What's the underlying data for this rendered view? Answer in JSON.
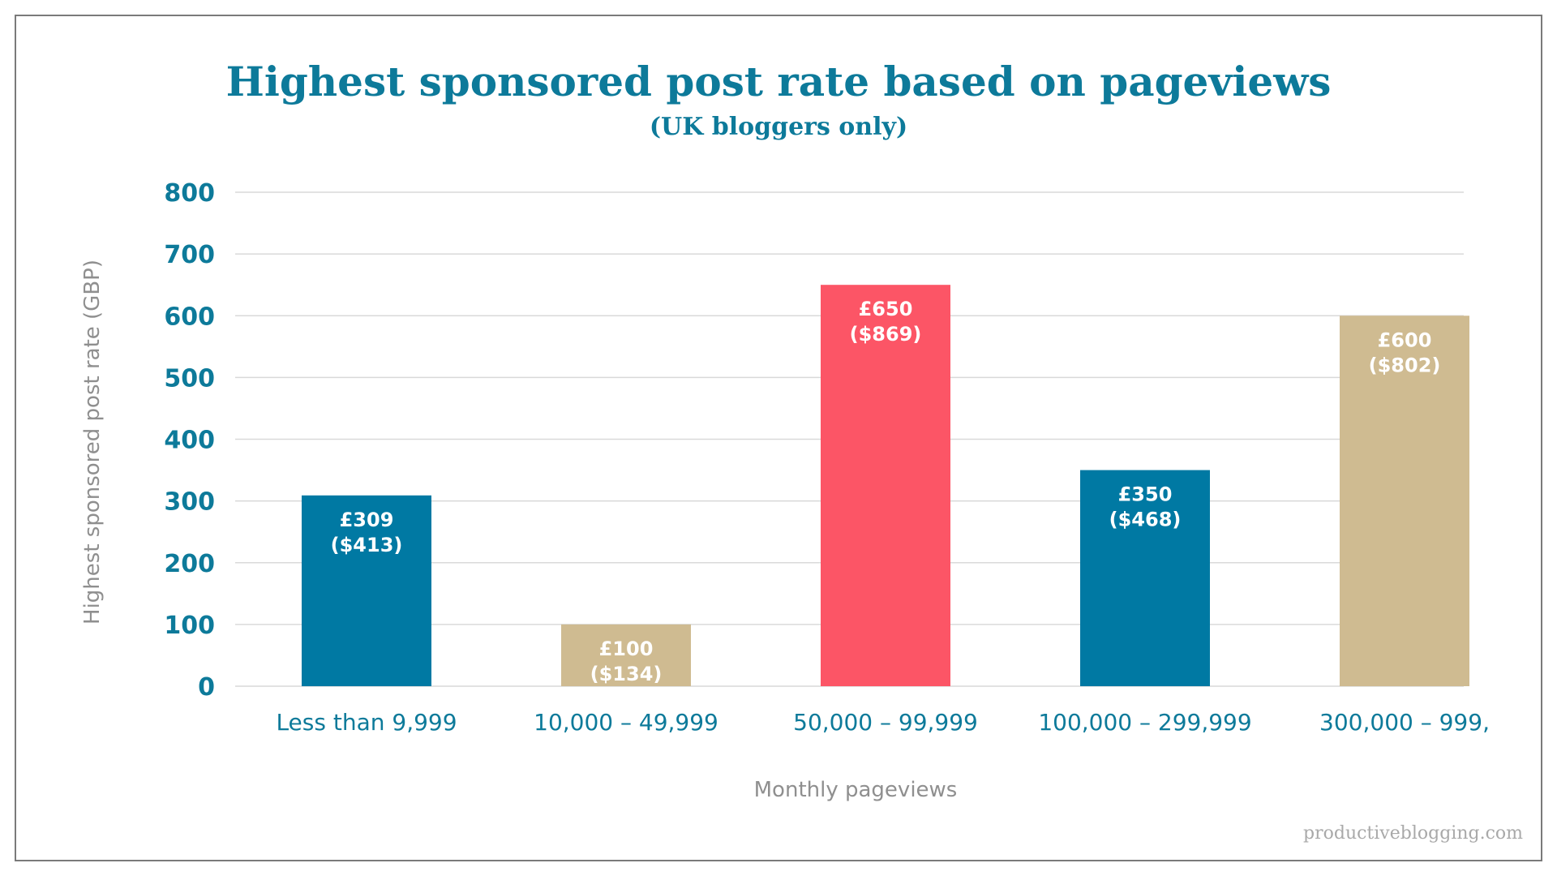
{
  "chart_data": {
    "type": "bar",
    "title": "Highest sponsored post rate based on pageviews",
    "subtitle": "(UK bloggers only)",
    "xlabel": "Monthly pageviews",
    "ylabel": "Highest sponsored post rate (GBP)",
    "ylim": [
      0,
      800
    ],
    "yticks": [
      "0",
      "100",
      "200",
      "300",
      "400",
      "500",
      "600",
      "700",
      "800"
    ],
    "grid": true,
    "categories": [
      "Less than 9,999",
      "10,000 – 49,999",
      "50,000 – 99,999",
      "100,000 – 299,999",
      "300,000 – 999,"
    ],
    "values": [
      309,
      100,
      650,
      350,
      600
    ],
    "data_labels": [
      [
        "£309",
        "($413)"
      ],
      [
        "£100",
        "($134)"
      ],
      [
        "£650",
        "($869)"
      ],
      [
        "£350",
        "($468)"
      ],
      [
        "£600",
        "($802)"
      ]
    ],
    "bar_colors": [
      "#0079a3",
      "#cfbb91",
      "#fc5566",
      "#0079a3",
      "#cfbb91"
    ]
  },
  "watermark": "productiveblogging.com",
  "colors": {
    "accent": "#0d7a9a",
    "gridline": "#d9d9d9",
    "axis_text": "#8f8f8f"
  }
}
